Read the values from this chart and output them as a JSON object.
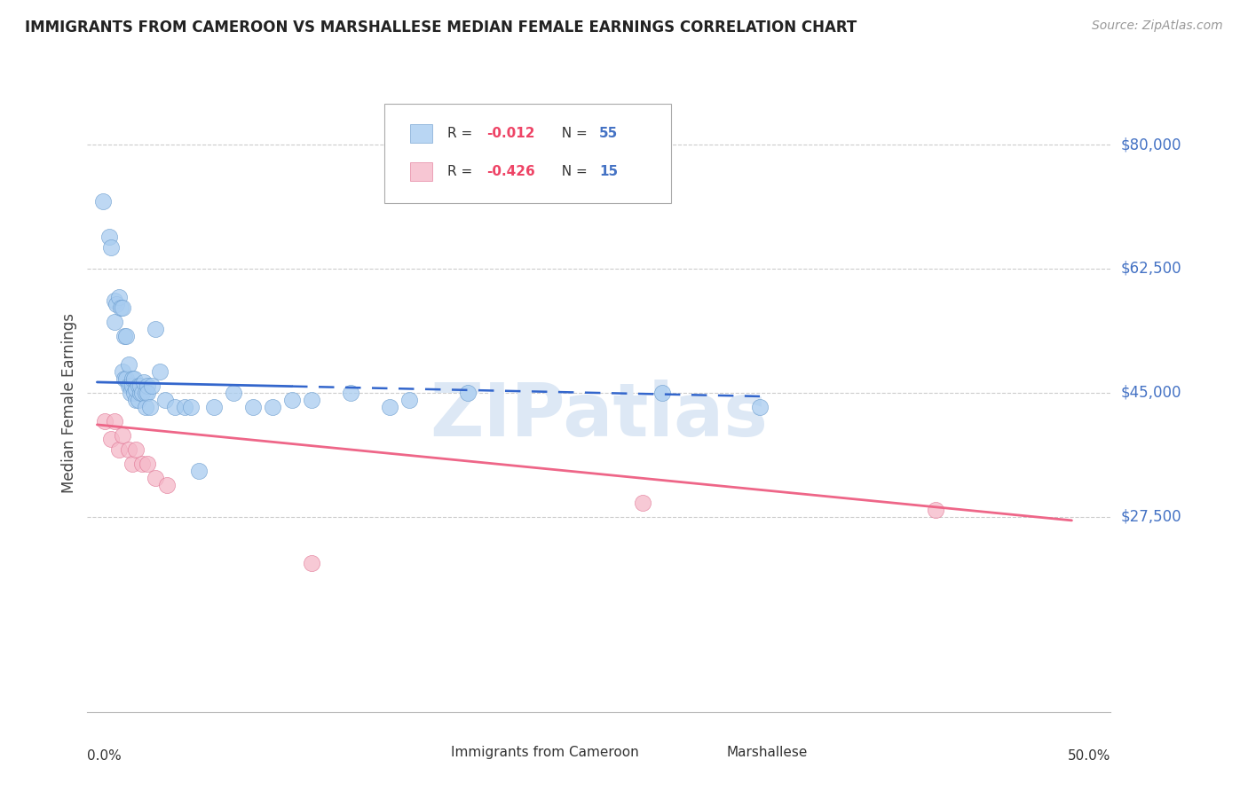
{
  "title": "IMMIGRANTS FROM CAMEROON VS MARSHALLESE MEDIAN FEMALE EARNINGS CORRELATION CHART",
  "source": "Source: ZipAtlas.com",
  "ylabel": "Median Female Earnings",
  "ylim": [
    0,
    87000
  ],
  "xlim": [
    -0.005,
    0.52
  ],
  "background_color": "#ffffff",
  "ytick_values": [
    27500,
    45000,
    62500,
    80000
  ],
  "ytick_labels": [
    "$27,500",
    "$45,000",
    "$62,500",
    "$80,000"
  ],
  "cameroon_color": "#a8ccf0",
  "cameroon_edge": "#6699cc",
  "marshallese_color": "#f5b8c8",
  "marshallese_edge": "#e07090",
  "trendline_cameroon_color": "#3366cc",
  "trendline_marshallese_color": "#ee6688",
  "ytick_color": "#4472c4",
  "legend_R_color": "#ee4466",
  "legend_N_color": "#4472c4",
  "cameroon_points_x": [
    0.003,
    0.006,
    0.007,
    0.009,
    0.009,
    0.01,
    0.011,
    0.012,
    0.013,
    0.013,
    0.014,
    0.014,
    0.015,
    0.015,
    0.016,
    0.016,
    0.017,
    0.017,
    0.018,
    0.018,
    0.019,
    0.019,
    0.02,
    0.02,
    0.021,
    0.021,
    0.022,
    0.022,
    0.023,
    0.024,
    0.025,
    0.025,
    0.026,
    0.026,
    0.027,
    0.028,
    0.03,
    0.032,
    0.035,
    0.04,
    0.045,
    0.048,
    0.052,
    0.06,
    0.07,
    0.08,
    0.09,
    0.1,
    0.11,
    0.13,
    0.15,
    0.16,
    0.19,
    0.29,
    0.34
  ],
  "cameroon_points_y": [
    72000,
    67000,
    65500,
    55000,
    58000,
    57500,
    58500,
    57000,
    48000,
    57000,
    53000,
    47000,
    47000,
    53000,
    46000,
    49000,
    46000,
    45000,
    46000,
    47000,
    45000,
    47000,
    44000,
    45500,
    44000,
    46000,
    45000,
    46000,
    45000,
    46500,
    45000,
    43000,
    46000,
    45000,
    43000,
    46000,
    54000,
    48000,
    44000,
    43000,
    43000,
    43000,
    34000,
    43000,
    45000,
    43000,
    43000,
    44000,
    44000,
    45000,
    43000,
    44000,
    45000,
    45000,
    43000
  ],
  "marshallese_points_x": [
    0.004,
    0.007,
    0.009,
    0.011,
    0.013,
    0.016,
    0.018,
    0.02,
    0.023,
    0.026,
    0.03,
    0.036,
    0.11,
    0.28,
    0.43
  ],
  "marshallese_points_y": [
    41000,
    38500,
    41000,
    37000,
    39000,
    37000,
    35000,
    37000,
    35000,
    35000,
    33000,
    32000,
    21000,
    29500,
    28500
  ],
  "cam_trend_x0": 0.0,
  "cam_trend_x1": 0.34,
  "cam_trend_y0": 46500,
  "cam_trend_y1": 44500,
  "cam_trend_solid_end": 0.1,
  "mar_trend_x0": 0.0,
  "mar_trend_x1": 0.5,
  "mar_trend_y0": 40500,
  "mar_trend_y1": 27000,
  "watermark_text": "ZIPatlas",
  "watermark_color": "#dde8f5",
  "watermark_fontsize": 60
}
